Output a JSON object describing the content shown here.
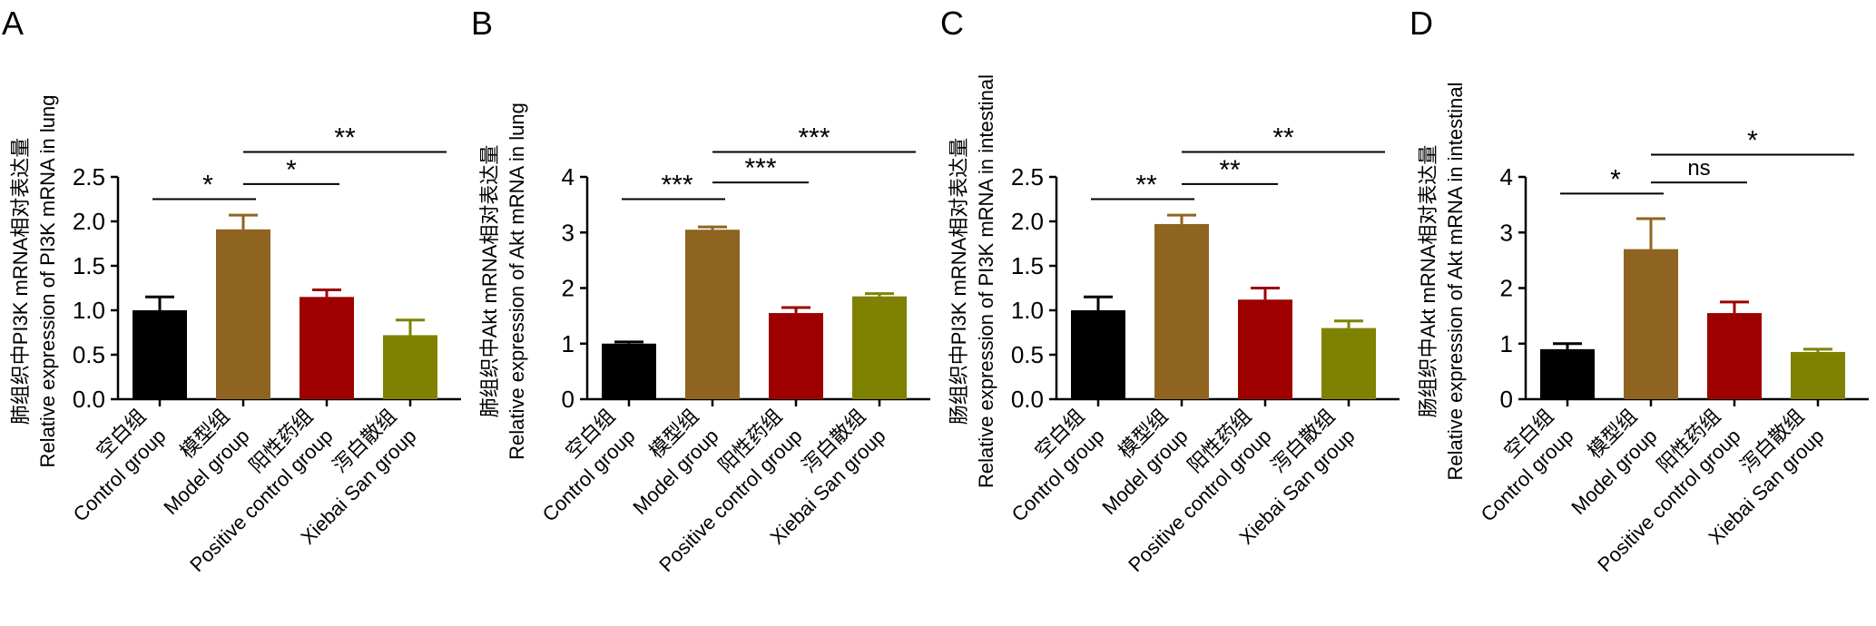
{
  "colors": {
    "control": "#000000",
    "model": "#8f6420",
    "positive": "#9e0000",
    "xiebai": "#7f8200"
  },
  "categories_cn": [
    "空白组",
    "模型组",
    "阳性药组",
    "泻白散组"
  ],
  "categories_en": [
    "Control group",
    "Model group",
    "Positive control group",
    "Xiebai San group"
  ],
  "chart_data": [
    {
      "type": "bar",
      "panel": "A",
      "ylabel_cn": "肺组织中PI3K  mRNA相对表达量",
      "ylabel_en": "Relative expression of PI3K mRNA in lung",
      "ylim": [
        0,
        2.5
      ],
      "yticks": [
        "0.0",
        "0.5",
        "1.0",
        "1.5",
        "2.0",
        "2.5"
      ],
      "ytick_values": [
        0,
        0.5,
        1,
        1.5,
        2,
        2.5
      ],
      "values": [
        1.0,
        1.91,
        1.15,
        0.72
      ],
      "errors": [
        0.15,
        0.16,
        0.08,
        0.17
      ],
      "significance": [
        {
          "from": 0,
          "to": 1,
          "label": "*",
          "y": 2.25
        },
        {
          "from": 1,
          "to": 2,
          "label": "*",
          "y": 2.42
        },
        {
          "from": 1,
          "to": 3,
          "label": "**",
          "y": 2.78
        }
      ]
    },
    {
      "type": "bar",
      "panel": "B",
      "ylabel_cn": "肺组织中Akt  mRNA相对表达量",
      "ylabel_en": "Relative expression of Akt mRNA in lung",
      "ylim": [
        0,
        4
      ],
      "yticks": [
        "0",
        "1",
        "2",
        "3",
        "4"
      ],
      "ytick_values": [
        0,
        1,
        2,
        3,
        4
      ],
      "values": [
        1.0,
        3.05,
        1.55,
        1.85
      ],
      "errors": [
        0.03,
        0.05,
        0.1,
        0.05
      ],
      "significance": [
        {
          "from": 0,
          "to": 1,
          "label": "***",
          "y": 3.6
        },
        {
          "from": 1,
          "to": 2,
          "label": "***",
          "y": 3.9
        },
        {
          "from": 1,
          "to": 3,
          "label": "***",
          "y": 4.45
        }
      ]
    },
    {
      "type": "bar",
      "panel": "C",
      "ylabel_cn": "肠组织中PI3K  mRNA相对表达量",
      "ylabel_en": "Relative expression of PI3K mRNA in intestinal",
      "ylim": [
        0,
        2.5
      ],
      "yticks": [
        "0.0",
        "0.5",
        "1.0",
        "1.5",
        "2.0",
        "2.5"
      ],
      "ytick_values": [
        0,
        0.5,
        1,
        1.5,
        2,
        2.5
      ],
      "values": [
        1.0,
        1.97,
        1.12,
        0.8
      ],
      "errors": [
        0.15,
        0.1,
        0.13,
        0.08
      ],
      "significance": [
        {
          "from": 0,
          "to": 1,
          "label": "**",
          "y": 2.25
        },
        {
          "from": 1,
          "to": 2,
          "label": "**",
          "y": 2.42
        },
        {
          "from": 1,
          "to": 3,
          "label": "**",
          "y": 2.78
        }
      ]
    },
    {
      "type": "bar",
      "panel": "D",
      "ylabel_cn": "肠组织中Akt  mRNA相对表达量",
      "ylabel_en": "Relative expression of Akt mRNA in intestinal",
      "ylim": [
        0,
        4
      ],
      "yticks": [
        "0",
        "1",
        "2",
        "3",
        "4"
      ],
      "ytick_values": [
        0,
        1,
        2,
        3,
        4
      ],
      "values": [
        0.9,
        2.7,
        1.55,
        0.85
      ],
      "errors": [
        0.1,
        0.55,
        0.2,
        0.05
      ],
      "significance": [
        {
          "from": 0,
          "to": 1,
          "label": "*",
          "y": 3.7
        },
        {
          "from": 1,
          "to": 2,
          "label": "ns",
          "y": 3.9
        },
        {
          "from": 1,
          "to": 3,
          "label": "*",
          "y": 4.4
        }
      ]
    }
  ]
}
